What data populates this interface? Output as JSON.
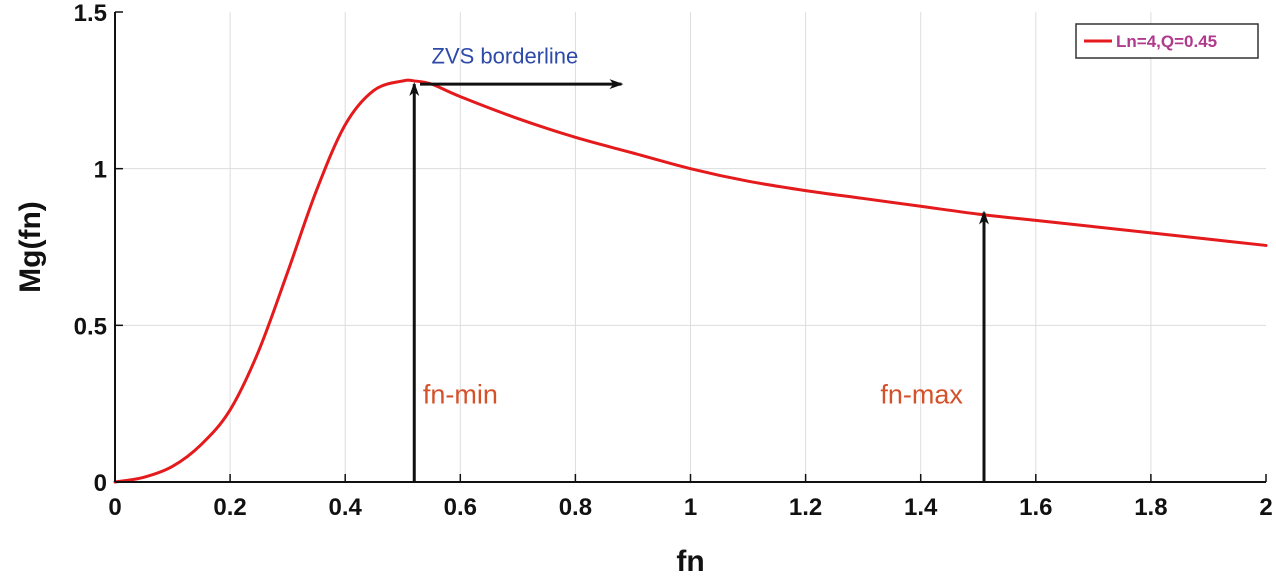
{
  "chart_data": {
    "type": "line",
    "title": "",
    "xlabel": "fn",
    "ylabel": "Mg(fn)",
    "xlim": [
      0,
      2
    ],
    "ylim": [
      0,
      1.5
    ],
    "grid": true,
    "x_ticks": [
      0,
      0.2,
      0.4,
      0.6,
      0.8,
      1,
      1.2,
      1.4,
      1.6,
      1.8,
      2
    ],
    "x_tick_labels": [
      "0",
      "0.2",
      "0.4",
      "0.6",
      "0.8",
      "1",
      "1.2",
      "1.4",
      "1.6",
      "1.8",
      "2"
    ],
    "y_ticks": [
      0,
      0.5,
      1,
      1.5
    ],
    "y_tick_labels": [
      "0",
      "0.5",
      "1",
      "1.5"
    ],
    "legend": {
      "position": "top-right",
      "entries": [
        "Ln=4,Q=0.45"
      ]
    },
    "series": [
      {
        "name": "Ln=4,Q=0.45",
        "color": "#e41a1c",
        "x": [
          0,
          0.05,
          0.1,
          0.15,
          0.2,
          0.25,
          0.3,
          0.35,
          0.4,
          0.45,
          0.5,
          0.52,
          0.55,
          0.6,
          0.7,
          0.8,
          0.9,
          1.0,
          1.1,
          1.2,
          1.3,
          1.4,
          1.5,
          1.6,
          1.7,
          1.8,
          1.9,
          2.0
        ],
        "y": [
          0,
          0.015,
          0.05,
          0.12,
          0.23,
          0.42,
          0.67,
          0.93,
          1.14,
          1.25,
          1.28,
          1.28,
          1.27,
          1.23,
          1.16,
          1.1,
          1.05,
          1.0,
          0.96,
          0.93,
          0.905,
          0.88,
          0.855,
          0.835,
          0.815,
          0.795,
          0.775,
          0.755
        ]
      }
    ],
    "annotations": {
      "zvs": {
        "text": "ZVS borderline",
        "x": 0.55,
        "y": 1.335,
        "color": "#2e4aa8",
        "arrow": {
          "from": [
            0.53,
            1.27
          ],
          "to": [
            0.88,
            1.27
          ]
        }
      },
      "fn_min": {
        "text": "fn-min",
        "x": 0.535,
        "y": 0.25,
        "color": "#d4512a",
        "arrow": {
          "from": [
            0.52,
            0
          ],
          "to": [
            0.52,
            1.27
          ]
        }
      },
      "fn_max": {
        "text": "fn-max",
        "x": 1.33,
        "y": 0.25,
        "color": "#d4512a",
        "arrow": {
          "from": [
            1.51,
            0
          ],
          "to": [
            1.51,
            0.86
          ]
        }
      }
    }
  }
}
